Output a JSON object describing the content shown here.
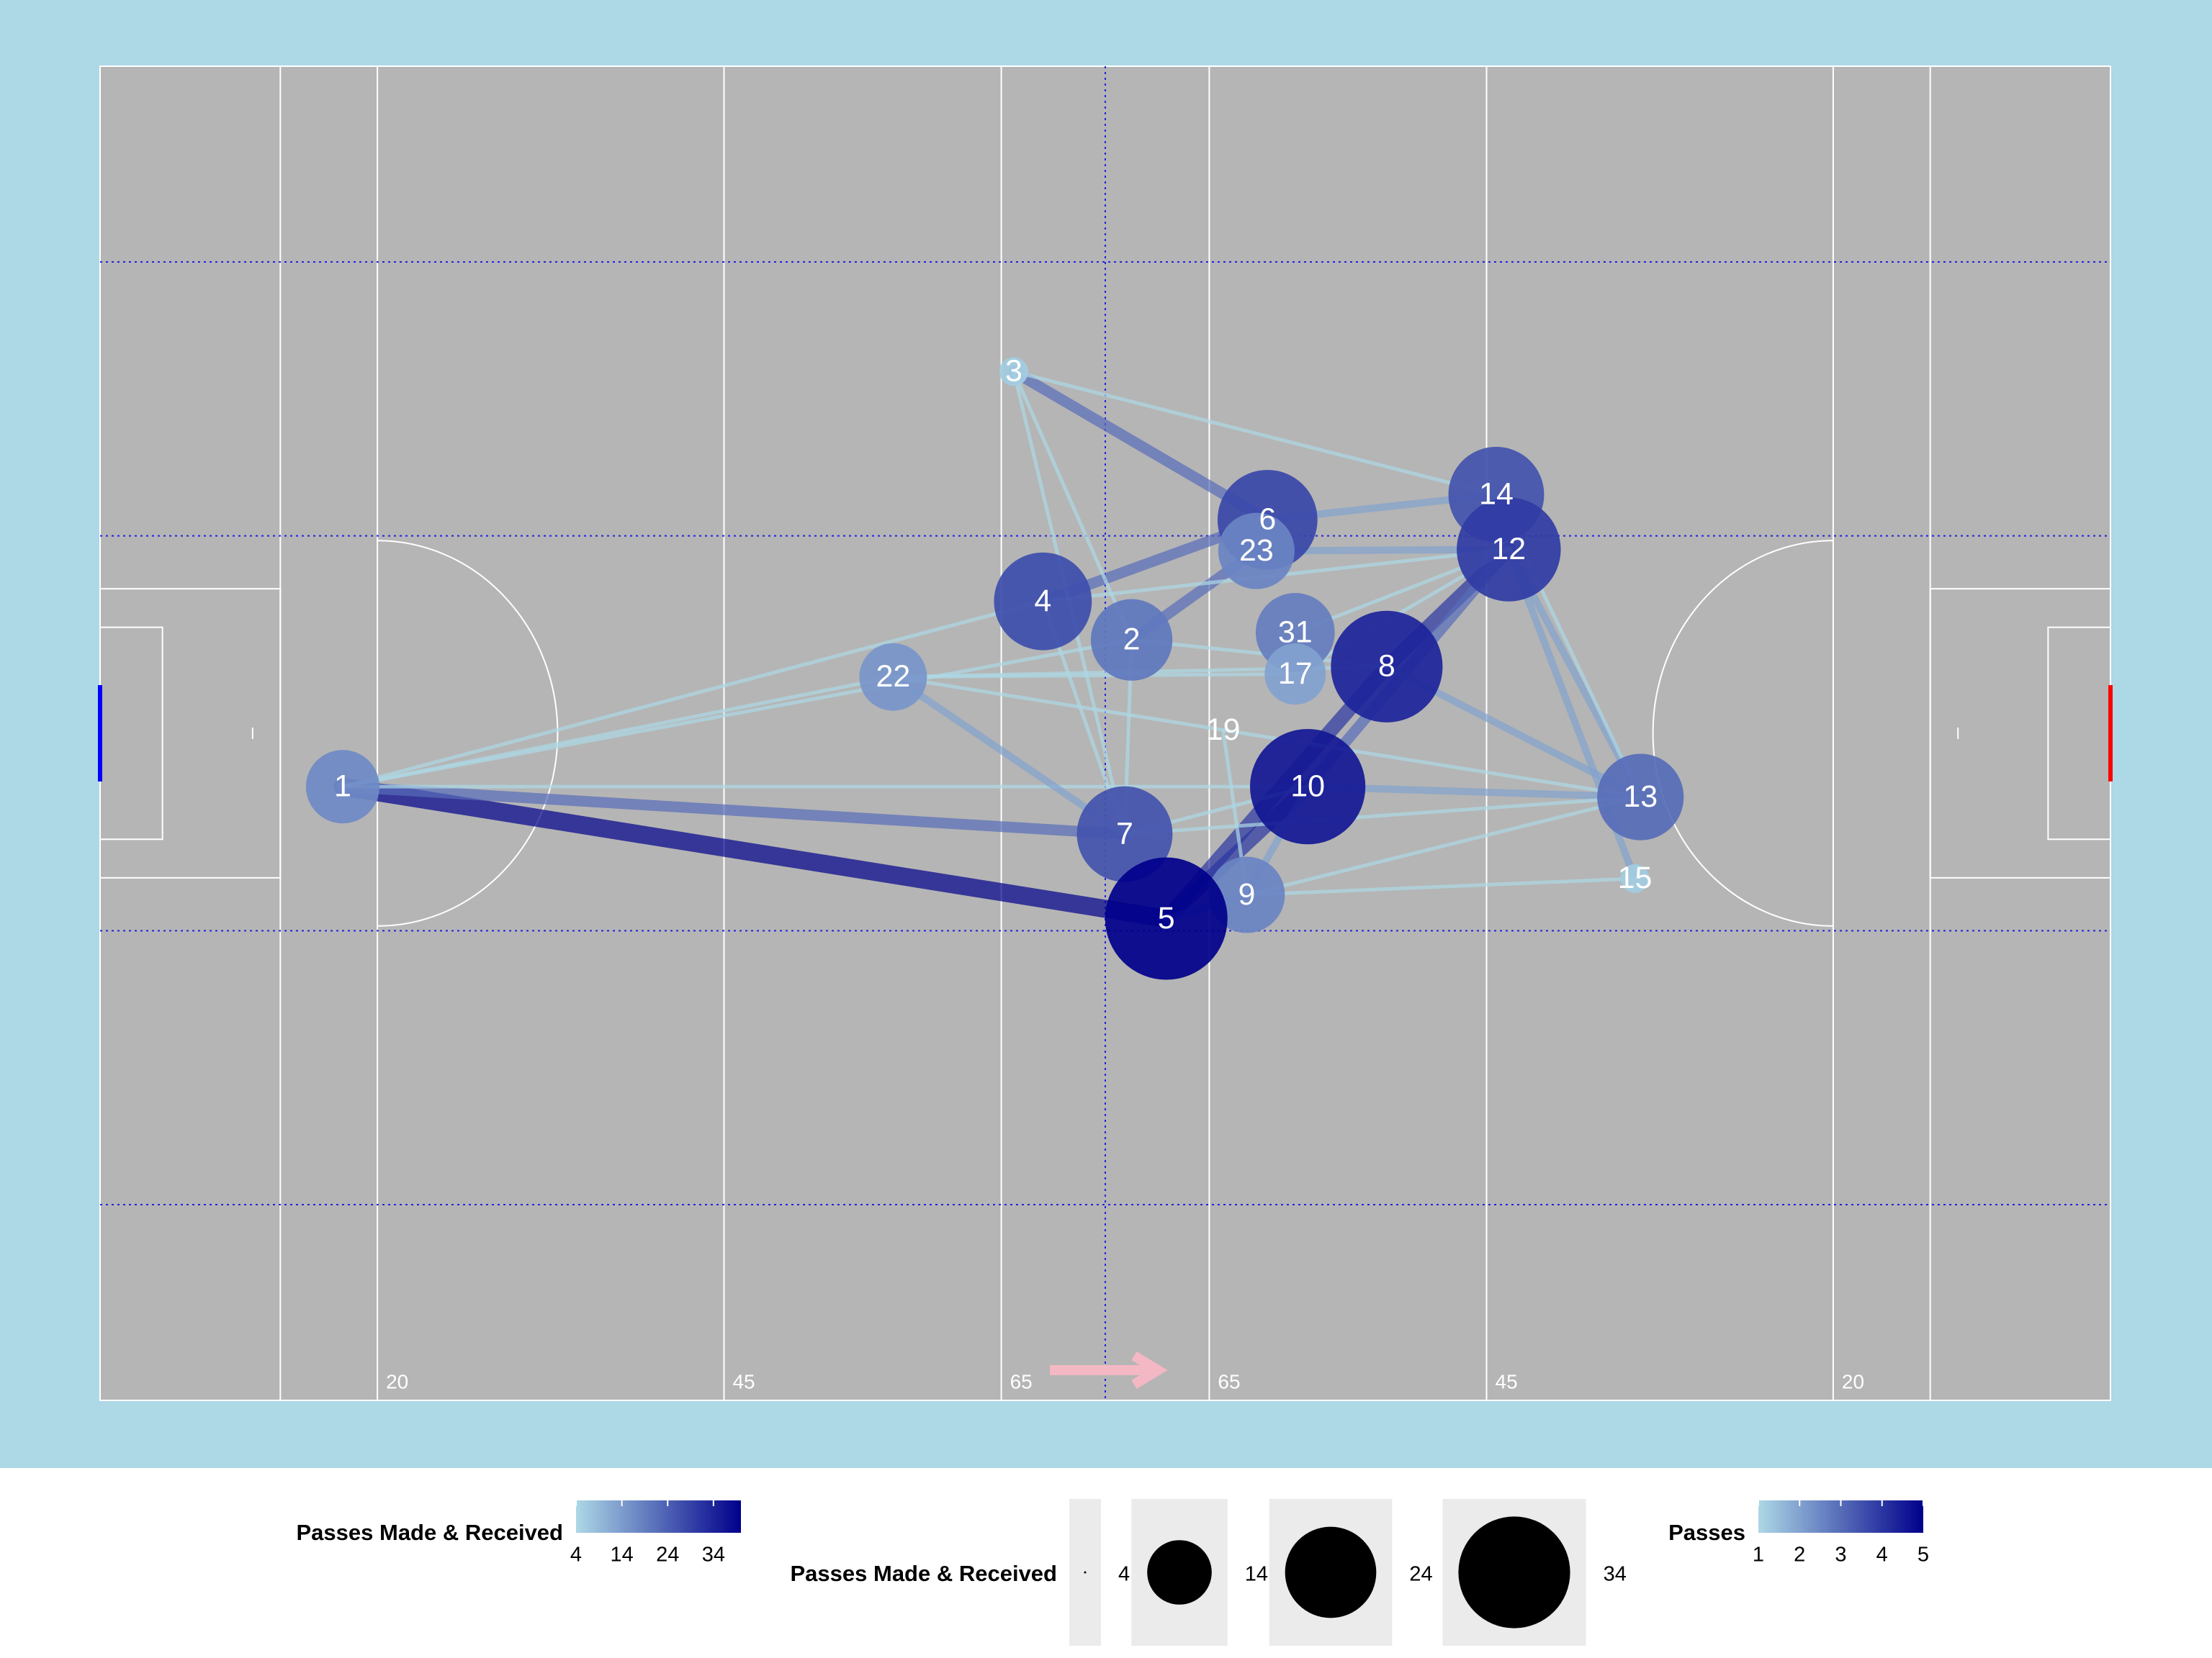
{
  "chart_data": {
    "type": "pass-network",
    "background_color": "#add8e6",
    "pitch_color": "#b5b5b5",
    "low_color": "#add8e6",
    "high_color": "#00008b",
    "left_goal_color": "#0000ff",
    "right_goal_color": "#ff0000",
    "xlim": [
      0,
      145
    ],
    "ylim": [
      0,
      90
    ],
    "xticks": [
      20,
      45,
      65,
      {
        "value": 80,
        "label": "65"
      },
      {
        "value": 100,
        "label": "45"
      },
      {
        "value": 125,
        "label": "20"
      }
    ],
    "nodes": [
      {
        "label": "1",
        "x": 17.5,
        "y": 48.6,
        "passes": 17
      },
      {
        "label": "3",
        "x": 65.9,
        "y": 20.6,
        "passes": 6
      },
      {
        "label": "6",
        "x": 84.2,
        "y": 30.6,
        "passes": 28
      },
      {
        "label": "23",
        "x": 83.4,
        "y": 32.7,
        "passes": 18
      },
      {
        "label": "14",
        "x": 100.7,
        "y": 28.9,
        "passes": 26
      },
      {
        "label": "12",
        "x": 101.6,
        "y": 32.6,
        "passes": 30
      },
      {
        "label": "4",
        "x": 68.0,
        "y": 36.1,
        "passes": 27
      },
      {
        "label": "2",
        "x": 74.4,
        "y": 38.7,
        "passes": 20
      },
      {
        "label": "22",
        "x": 57.2,
        "y": 41.2,
        "passes": 15
      },
      {
        "label": "31",
        "x": 86.2,
        "y": 38.2,
        "passes": 19
      },
      {
        "label": "17",
        "x": 86.2,
        "y": 41.0,
        "passes": 13
      },
      {
        "label": "8",
        "x": 92.8,
        "y": 40.5,
        "passes": 34
      },
      {
        "label": "19",
        "x": 81.0,
        "y": 44.8,
        "passes": 4
      },
      {
        "label": "10",
        "x": 87.1,
        "y": 48.6,
        "passes": 36
      },
      {
        "label": "13",
        "x": 111.1,
        "y": 49.3,
        "passes": 22
      },
      {
        "label": "7",
        "x": 73.9,
        "y": 51.8,
        "passes": 26
      },
      {
        "label": "9",
        "x": 82.7,
        "y": 55.9,
        "passes": 18
      },
      {
        "label": "5",
        "x": 76.9,
        "y": 57.5,
        "passes": 40
      },
      {
        "label": "15",
        "x": 110.7,
        "y": 54.8,
        "passes": 6
      }
    ],
    "edges": [
      {
        "from": "1",
        "to": "5",
        "passes": 5
      },
      {
        "from": "1",
        "to": "7",
        "passes": 3
      },
      {
        "from": "1",
        "to": "22",
        "passes": 1
      },
      {
        "from": "1",
        "to": "4",
        "passes": 1
      },
      {
        "from": "1",
        "to": "2",
        "passes": 1
      },
      {
        "from": "1",
        "to": "10",
        "passes": 1
      },
      {
        "from": "5",
        "to": "8",
        "passes": 4
      },
      {
        "from": "5",
        "to": "10",
        "passes": 4
      },
      {
        "from": "5",
        "to": "9",
        "passes": 2
      },
      {
        "from": "8",
        "to": "12",
        "passes": 4
      },
      {
        "from": "10",
        "to": "12",
        "passes": 3
      },
      {
        "from": "4",
        "to": "6",
        "passes": 3
      },
      {
        "from": "2",
        "to": "23",
        "passes": 3
      },
      {
        "from": "3",
        "to": "6",
        "passes": 3
      },
      {
        "from": "22",
        "to": "7",
        "passes": 2
      },
      {
        "from": "12",
        "to": "13",
        "passes": 2
      },
      {
        "from": "12",
        "to": "15",
        "passes": 2
      },
      {
        "from": "14",
        "to": "13",
        "passes": 1
      },
      {
        "from": "6",
        "to": "14",
        "passes": 2
      },
      {
        "from": "23",
        "to": "12",
        "passes": 2
      },
      {
        "from": "10",
        "to": "13",
        "passes": 2
      },
      {
        "from": "8",
        "to": "13",
        "passes": 2
      },
      {
        "from": "9",
        "to": "10",
        "passes": 2
      },
      {
        "from": "7",
        "to": "4",
        "passes": 1
      },
      {
        "from": "7",
        "to": "2",
        "passes": 1
      },
      {
        "from": "7",
        "to": "13",
        "passes": 1
      },
      {
        "from": "7",
        "to": "10",
        "passes": 1
      },
      {
        "from": "9",
        "to": "15",
        "passes": 1
      },
      {
        "from": "9",
        "to": "13",
        "passes": 1
      },
      {
        "from": "3",
        "to": "14",
        "passes": 1
      },
      {
        "from": "3",
        "to": "7",
        "passes": 1
      },
      {
        "from": "3",
        "to": "2",
        "passes": 1
      },
      {
        "from": "4",
        "to": "12",
        "passes": 1
      },
      {
        "from": "22",
        "to": "8",
        "passes": 1
      },
      {
        "from": "22",
        "to": "17",
        "passes": 1
      },
      {
        "from": "2",
        "to": "8",
        "passes": 1
      },
      {
        "from": "31",
        "to": "12",
        "passes": 1
      },
      {
        "from": "17",
        "to": "12",
        "passes": 1
      },
      {
        "from": "19",
        "to": "9",
        "passes": 1
      },
      {
        "from": "13",
        "to": "22",
        "passes": 1
      }
    ],
    "legend": {
      "size_title": "Passes Made & Received",
      "size_ticks": [
        4,
        14,
        24,
        34
      ],
      "edge_title": "Passes",
      "edge_ticks": [
        1,
        2,
        3,
        4,
        5
      ]
    }
  }
}
